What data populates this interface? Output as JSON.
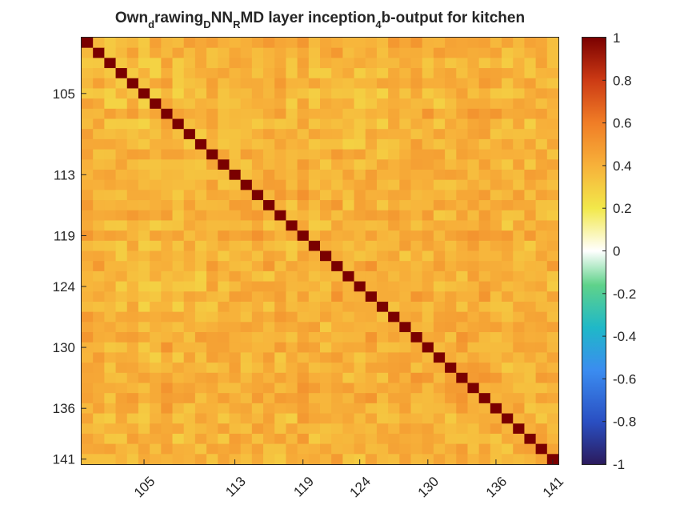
{
  "chart_data": {
    "type": "heatmap",
    "title": {
      "p1": "Own",
      "s1": "d",
      "p2": "rawing",
      "s2": "D",
      "p3": "NN",
      "s3": "R",
      "p4": "MD layer inception",
      "s4": "4",
      "p5": "b-output for kitchen"
    },
    "row_start": 100,
    "row_end": 141,
    "y_tick_labels": [
      "105",
      "113",
      "119",
      "124",
      "130",
      "136",
      "141"
    ],
    "x_tick_labels": [
      "105",
      "113",
      "119",
      "124",
      "130",
      "136",
      "141"
    ],
    "x_tick_rotation_deg": -45,
    "colorbar": {
      "limits": [
        -1,
        1
      ],
      "ticks": [
        "1",
        "0.8",
        "0.6",
        "0.4",
        "0.2",
        "0",
        "-0.2",
        "-0.4",
        "-0.6",
        "-0.8",
        "-1"
      ]
    },
    "colormap": "diverging: dark blue (-1) → blue → cyan → green → white (0) → yellow → orange → dark red (+1)",
    "diagonal_value": 1,
    "off_diagonal_range": [
      0.22,
      0.55
    ],
    "off_diagonal_typical": 0.4
  }
}
